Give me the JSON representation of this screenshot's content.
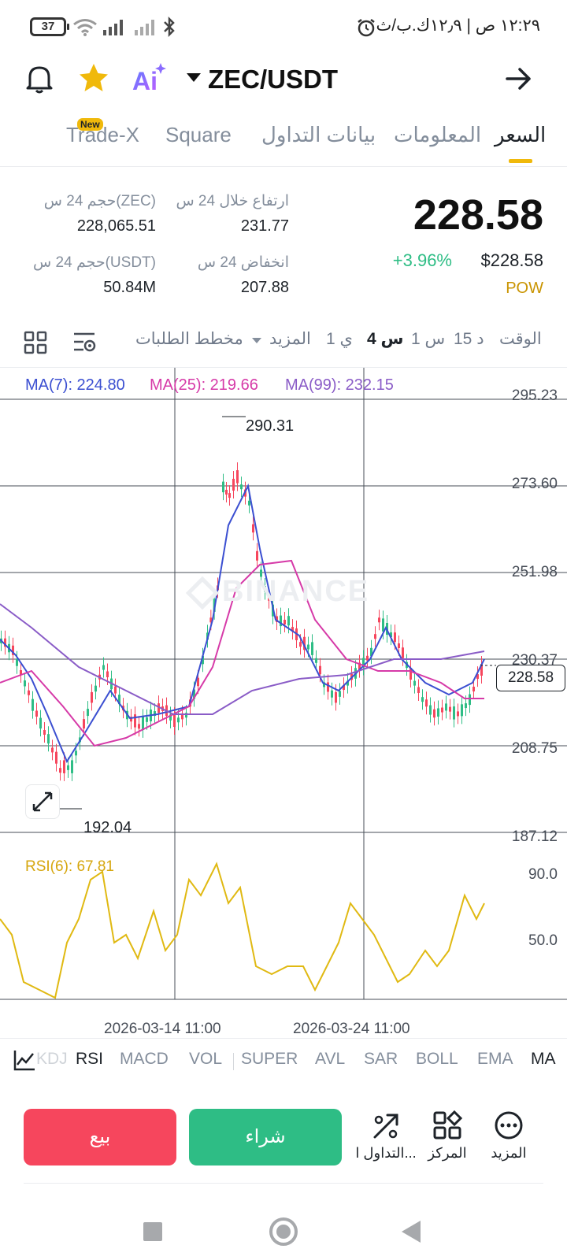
{
  "status_bar": {
    "time": "١٢:٢٩ ص | ١٢٫٩ك.ب/ث",
    "battery": "37"
  },
  "header": {
    "pair": "ZEC/USDT",
    "ai_label": "Ai"
  },
  "tabs": {
    "price": "السعر",
    "info": "المعلومات",
    "trading_data": "بيانات التداول",
    "square": "Square",
    "tradex": "Trade-X",
    "new_badge": "New"
  },
  "ticker": {
    "last_price": "228.58",
    "usd_price": "$228.58",
    "change": "+3.96%",
    "tag": "POW",
    "high_label": "ارتفاع خلال 24 س",
    "high_value": "231.77",
    "low_label": "انخفاض 24 س",
    "low_value": "207.88",
    "vol_base_label": "حجم 24 س(ZEC)",
    "vol_base_value": "228,065.51",
    "vol_quote_label": "حجم 24 س(USDT)",
    "vol_quote_value": "50.84M"
  },
  "intervals": {
    "time": "الوقت",
    "m15": "15 د",
    "h1": "1 س",
    "h4": "4 س",
    "d1": "1 ي",
    "more": "المزيد",
    "depth": "مخطط الطلبات"
  },
  "chart": {
    "ma7": "MA(7): 224.80",
    "ma25": "MA(25): 219.66",
    "ma99": "MA(99): 232.15",
    "axis": [
      "295.23",
      "273.60",
      "251.98",
      "230.37",
      "208.75",
      "187.12"
    ],
    "current": "228.58",
    "high_mark": "290.31",
    "low_mark": "192.04",
    "rsi": "RSI(6): 67.81",
    "rsi_axis": [
      "90.0",
      "50.0"
    ],
    "dates": [
      "2026-03-14 11:00",
      "2026-03-24 11:00"
    ],
    "watermark": "BINANCE",
    "colors": {
      "up": "#2ebd85",
      "down": "#f6465d",
      "ma7": "#3b4fd1",
      "ma25": "#d63aa8",
      "ma99": "#8a5cc7",
      "rsi": "#e0b912"
    }
  },
  "indicators": {
    "ma": "MA",
    "ema": "EMA",
    "boll": "BOLL",
    "sar": "SAR",
    "avl": "AVL",
    "super": "SUPER",
    "vol": "VOL",
    "macd": "MACD",
    "rsi": "RSI",
    "kdj": "KDJ"
  },
  "actions": {
    "more": "المزيد",
    "position": "المركز",
    "trading": "التداول ا...",
    "buy": "شراء",
    "sell": "بيع"
  }
}
